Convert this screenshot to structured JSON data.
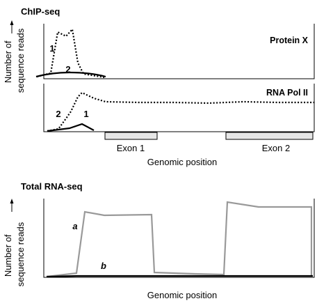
{
  "chipseq": {
    "title": "ChIP-seq",
    "ylabel": [
      "Number of",
      "sequence reads"
    ],
    "panel_top": {
      "label": "Protein X",
      "curve1_label": "1",
      "curve2_label": "2",
      "curve1_style": "dotted",
      "curve2_style": "solid"
    },
    "panel_bottom": {
      "label": "RNA Pol II",
      "curve1_label": "1",
      "curve2_label": "2",
      "curve1_style": "solid",
      "curve2_style": "dotted"
    },
    "exons": [
      {
        "label": "Exon 1"
      },
      {
        "label": "Exon 2"
      }
    ],
    "xlabel": "Genomic position"
  },
  "rnaseq": {
    "title": "Total RNA-seq",
    "ylabel": [
      "Number of",
      "sequence reads"
    ],
    "curve_a_label": "a",
    "curve_b_label": "b",
    "curve_a_color": "#999999",
    "curve_b_color": "#000000",
    "xlabel": "Genomic position"
  },
  "colors": {
    "dotted": "#000000",
    "frame": "#000000",
    "exon_fill": "#e6e6e6"
  }
}
